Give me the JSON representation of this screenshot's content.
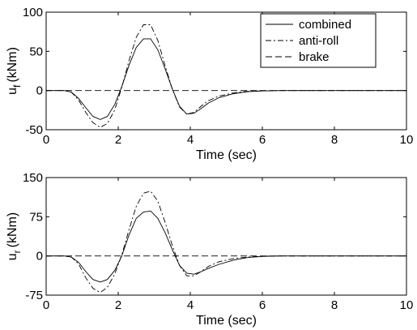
{
  "chart_data": [
    {
      "type": "line",
      "xlabel": "Time (sec)",
      "ylabel": "u",
      "ylabel_sub": "f",
      "ylabel_unit": "(kNm)",
      "xlim": [
        0,
        10
      ],
      "ylim": [
        -50,
        100
      ],
      "xticks": [
        "0",
        "2",
        "4",
        "6",
        "8",
        "10"
      ],
      "yticks": [
        "-50",
        "0",
        "50",
        "100"
      ],
      "grid": false,
      "legend_position": "top-right",
      "series": [
        {
          "name": "combined",
          "style": "solid",
          "x": [
            0,
            0.5,
            0.7,
            0.9,
            1.1,
            1.3,
            1.5,
            1.7,
            1.9,
            2.1,
            2.3,
            2.5,
            2.7,
            2.9,
            3.1,
            3.3,
            3.5,
            3.7,
            3.9,
            4.1,
            4.3,
            4.5,
            4.8,
            5.2,
            5.6,
            6.0,
            6.5,
            7,
            10
          ],
          "y": [
            0,
            0,
            -2,
            -10,
            -22,
            -33,
            -37,
            -33,
            -18,
            5,
            32,
            55,
            66,
            66,
            52,
            28,
            2,
            -20,
            -30,
            -29,
            -23,
            -16,
            -9,
            -4,
            -1.5,
            -0.5,
            0,
            0,
            0
          ]
        },
        {
          "name": "anti-roll",
          "style": "dashdot",
          "x": [
            0,
            0.5,
            0.7,
            0.9,
            1.1,
            1.3,
            1.5,
            1.7,
            1.9,
            2.1,
            2.3,
            2.5,
            2.7,
            2.9,
            3.1,
            3.3,
            3.5,
            3.7,
            3.9,
            4.1,
            4.3,
            4.5,
            4.8,
            5.2,
            5.6,
            6.0,
            6.5,
            7,
            10
          ],
          "y": [
            0,
            0,
            -2,
            -12,
            -28,
            -41,
            -47,
            -42,
            -25,
            4,
            38,
            68,
            84,
            84,
            64,
            32,
            2,
            -21,
            -30,
            -28,
            -20,
            -13,
            -7,
            -3,
            -1,
            -0.3,
            0,
            0,
            0
          ]
        },
        {
          "name": "brake",
          "style": "dashed",
          "x": [
            0,
            10
          ],
          "y": [
            0,
            0
          ]
        }
      ]
    },
    {
      "type": "line",
      "xlabel": "Time (sec)",
      "ylabel": "u",
      "ylabel_sub": "r",
      "ylabel_unit": "(kNm)",
      "xlim": [
        0,
        10
      ],
      "ylim": [
        -75,
        150
      ],
      "xticks": [
        "0",
        "2",
        "4",
        "6",
        "8",
        "10"
      ],
      "yticks": [
        "-75",
        "0",
        "75",
        "150"
      ],
      "grid": false,
      "series": [
        {
          "name": "combined",
          "style": "solid",
          "x": [
            0,
            0.5,
            0.7,
            0.9,
            1.1,
            1.3,
            1.5,
            1.7,
            1.9,
            2.1,
            2.3,
            2.5,
            2.7,
            2.9,
            3.1,
            3.3,
            3.5,
            3.7,
            3.9,
            4.1,
            4.3,
            4.5,
            4.8,
            5.2,
            5.6,
            6.0,
            6.5,
            7,
            10
          ],
          "y": [
            0,
            0,
            -2,
            -12,
            -30,
            -45,
            -50,
            -45,
            -28,
            0,
            40,
            72,
            84,
            86,
            72,
            45,
            12,
            -18,
            -33,
            -35,
            -30,
            -24,
            -16,
            -8,
            -3,
            -1,
            0,
            0,
            0
          ]
        },
        {
          "name": "anti-roll",
          "style": "dashdot",
          "x": [
            0,
            0.5,
            0.7,
            0.9,
            1.1,
            1.3,
            1.5,
            1.7,
            1.9,
            2.1,
            2.3,
            2.5,
            2.7,
            2.9,
            3.1,
            3.3,
            3.5,
            3.7,
            3.9,
            4.1,
            4.3,
            4.5,
            4.8,
            5.2,
            5.6,
            6.0,
            6.5,
            7,
            10
          ],
          "y": [
            0,
            0,
            -2,
            -15,
            -42,
            -62,
            -70,
            -60,
            -35,
            2,
            50,
            95,
            120,
            124,
            105,
            65,
            20,
            -18,
            -38,
            -38,
            -30,
            -20,
            -11,
            -5,
            -2,
            -0.5,
            0,
            0,
            0
          ]
        },
        {
          "name": "brake",
          "style": "dashed",
          "x": [
            0,
            10
          ],
          "y": [
            0,
            0
          ]
        }
      ]
    }
  ]
}
